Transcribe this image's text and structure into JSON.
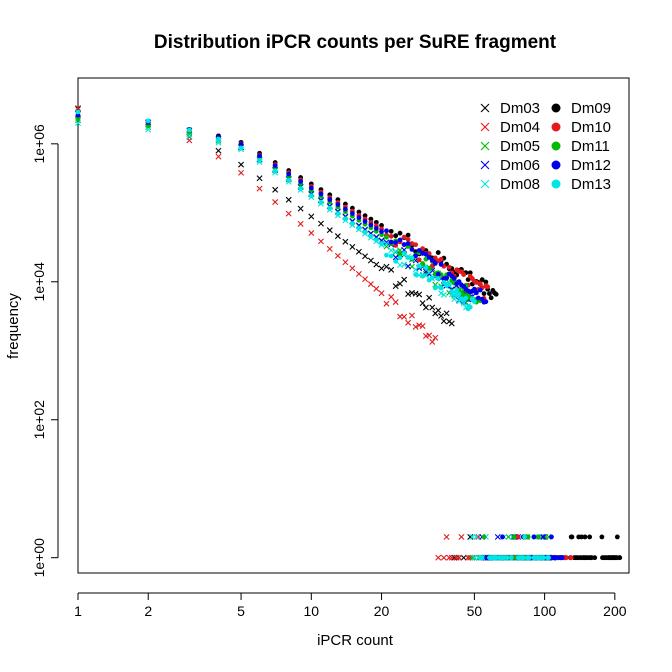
{
  "chart_data": {
    "type": "scatter",
    "title": "Distribution iPCR counts per SuRE fragment",
    "xlabel": "iPCR count",
    "ylabel": "frequency",
    "x_scale": "log",
    "y_scale": "log",
    "xlim": [
      1,
      230
    ],
    "ylim": [
      0.6,
      9000000
    ],
    "x_ticks": [
      1,
      2,
      5,
      10,
      20,
      50,
      100,
      200
    ],
    "x_tick_labels": [
      "1",
      "2",
      "5",
      "10",
      "20",
      "50",
      "100",
      "200"
    ],
    "y_ticks": [
      1,
      100,
      10000,
      1000000
    ],
    "y_tick_labels": [
      "1e+00",
      "1e+02",
      "1e+04",
      "1e+06"
    ],
    "grid": false,
    "legend_position": "top-right",
    "series": [
      {
        "name": "Dm03",
        "color": "#000000",
        "marker": "x",
        "decay": 2.5,
        "mid": [
          5,
          500000
        ],
        "y1": 3200000,
        "last_cont": 40,
        "ones_to": 80
      },
      {
        "name": "Dm04",
        "color": "#e41a1c",
        "marker": "x",
        "decay": 2.9,
        "mid": [
          5,
          380000
        ],
        "y1": 3300000,
        "last_cont": 34,
        "ones_to": 72
      },
      {
        "name": "Dm05",
        "color": "#00bb00",
        "marker": "x",
        "decay": 2.25,
        "mid": [
          5,
          880000
        ],
        "y1": 2200000,
        "last_cont": 48,
        "ones_to": 105
      },
      {
        "name": "Dm06",
        "color": "#0000ee",
        "marker": "x",
        "decay": 2.25,
        "mid": [
          5,
          900000
        ],
        "y1": 2700000,
        "last_cont": 50,
        "ones_to": 110
      },
      {
        "name": "Dm08",
        "color": "#00e5e5",
        "marker": "x",
        "decay": 2.3,
        "mid": [
          5,
          830000
        ],
        "y1": 2000000,
        "last_cont": 47,
        "ones_to": 100
      },
      {
        "name": "Dm09",
        "color": "#000000",
        "marker": "dot",
        "decay": 2.0,
        "mid": [
          5,
          1050000
        ],
        "y1": 2500000,
        "last_cont": 62,
        "ones_to": 210
      },
      {
        "name": "Dm10",
        "color": "#e41a1c",
        "marker": "dot",
        "decay": 2.05,
        "mid": [
          5,
          1000000
        ],
        "y1": 2400000,
        "last_cont": 57,
        "ones_to": 130
      },
      {
        "name": "Dm11",
        "color": "#00bb00",
        "marker": "dot",
        "decay": 2.15,
        "mid": [
          5,
          950000
        ],
        "y1": 2300000,
        "last_cont": 54,
        "ones_to": 115
      },
      {
        "name": "Dm12",
        "color": "#0000ee",
        "marker": "dot",
        "decay": 2.1,
        "mid": [
          5,
          980000
        ],
        "y1": 2600000,
        "last_cont": 56,
        "ones_to": 120
      },
      {
        "name": "Dm13",
        "color": "#00e5e5",
        "marker": "dot",
        "decay": 2.3,
        "mid": [
          5,
          870000
        ],
        "y1": 2900000,
        "last_cont": 50,
        "ones_to": 105
      }
    ]
  }
}
